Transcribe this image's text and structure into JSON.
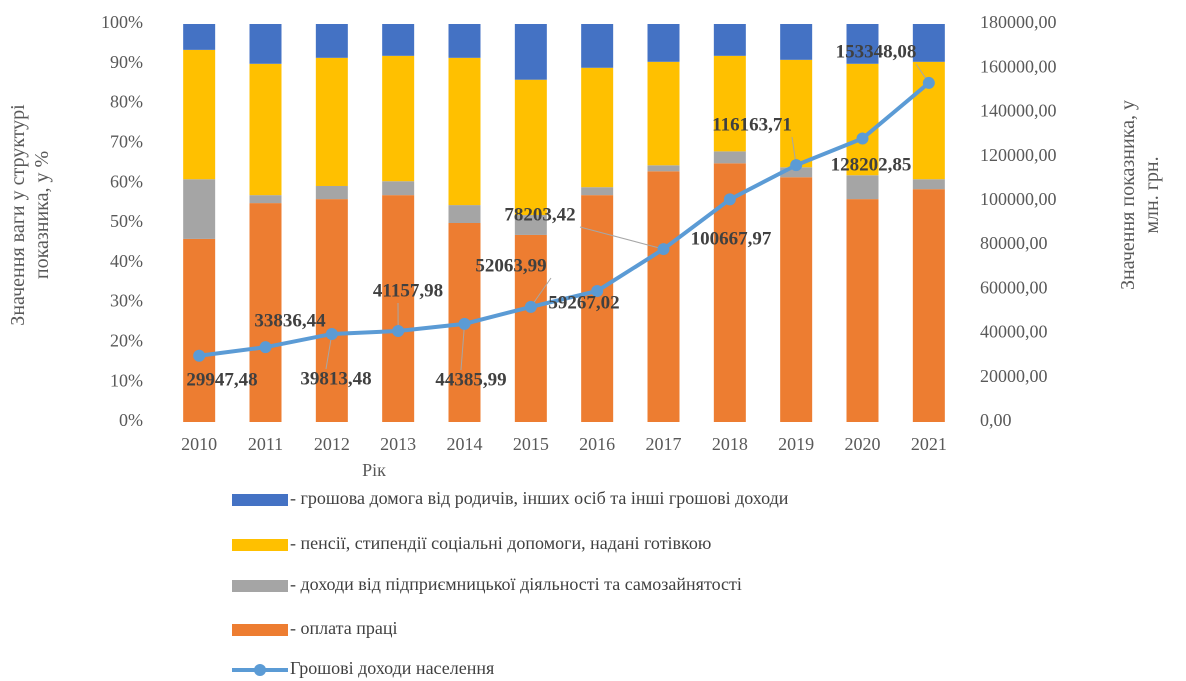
{
  "chart_data": {
    "type": "bar",
    "stacked": true,
    "xlabel": "Рік",
    "ylabel": "Значення ваги у структурі показника, у %",
    "y2label": "Значення показника, у млн. грн.",
    "categories": [
      "2010",
      "2011",
      "2012",
      "2013",
      "2014",
      "2015",
      "2016",
      "2017",
      "2018",
      "2019",
      "2020",
      "2021"
    ],
    "series": [
      {
        "name": "- грошова домога від родичів, інших осіб та інші грошові доходи",
        "type": "bar",
        "color": "#4472C4",
        "values": [
          6.5,
          10,
          8.5,
          8,
          8.5,
          14,
          11,
          9.5,
          8,
          9,
          10,
          9.5
        ]
      },
      {
        "name": "- пенсії, стипендії соціальні допомоги, надані готівкою",
        "type": "bar",
        "color": "#FFC000",
        "values": [
          32.5,
          33,
          32.2,
          31.5,
          37,
          34,
          30,
          26,
          24,
          27,
          28,
          29.5
        ]
      },
      {
        "name": "- доходи від підприємницької діяльності та самозайнятості",
        "type": "bar",
        "color": "#A5A5A5",
        "values": [
          15,
          2,
          3.3,
          3.5,
          4.5,
          5,
          2,
          1.5,
          3,
          2.5,
          6,
          2.5
        ]
      },
      {
        "name": "- оплата праці",
        "type": "bar",
        "color": "#ED7D31",
        "values": [
          46,
          55,
          56,
          57,
          50,
          47,
          57,
          63,
          65,
          61.5,
          56,
          58.5
        ]
      },
      {
        "name": "Грошові доходи населення",
        "type": "line",
        "axis": "y2",
        "color": "#5B9BD5",
        "values": [
          29947.48,
          33836.44,
          39813.48,
          41157.98,
          44385.99,
          52063.99,
          59267.02,
          78203.42,
          100667.97,
          116163.71,
          128202.85,
          153348.08
        ],
        "value_labels": [
          "29947,48",
          "33836,44",
          "39813,48",
          "41157,98",
          "44385,99",
          "52063,99",
          "59267,02",
          "78203,42",
          "100667,97",
          "116163,71",
          "128202,85",
          "153348,08"
        ]
      }
    ],
    "ylim": [
      0,
      100
    ],
    "yticks": [
      {
        "value": 0,
        "label": "0%"
      },
      {
        "value": 10,
        "label": "10%"
      },
      {
        "value": 20,
        "label": "20%"
      },
      {
        "value": 30,
        "label": "30%"
      },
      {
        "value": 40,
        "label": "40%"
      },
      {
        "value": 50,
        "label": "50%"
      },
      {
        "value": 60,
        "label": "60%"
      },
      {
        "value": 70,
        "label": "70%"
      },
      {
        "value": 80,
        "label": "80%"
      },
      {
        "value": 90,
        "label": "90%"
      },
      {
        "value": 100,
        "label": "100%"
      }
    ],
    "y2lim": [
      0,
      180000
    ],
    "y2ticks": [
      {
        "value": 0,
        "label": "0,00"
      },
      {
        "value": 20000,
        "label": "20000,00"
      },
      {
        "value": 40000,
        "label": "40000,00"
      },
      {
        "value": 60000,
        "label": "60000,00"
      },
      {
        "value": 80000,
        "label": "80000,00"
      },
      {
        "value": 100000,
        "label": "100000,00"
      },
      {
        "value": 120000,
        "label": "120000,00"
      },
      {
        "value": 140000,
        "label": "140000,00"
      },
      {
        "value": 160000,
        "label": "160000,00"
      },
      {
        "value": 180000,
        "label": "180000,00"
      }
    ],
    "legend": "bottom"
  }
}
